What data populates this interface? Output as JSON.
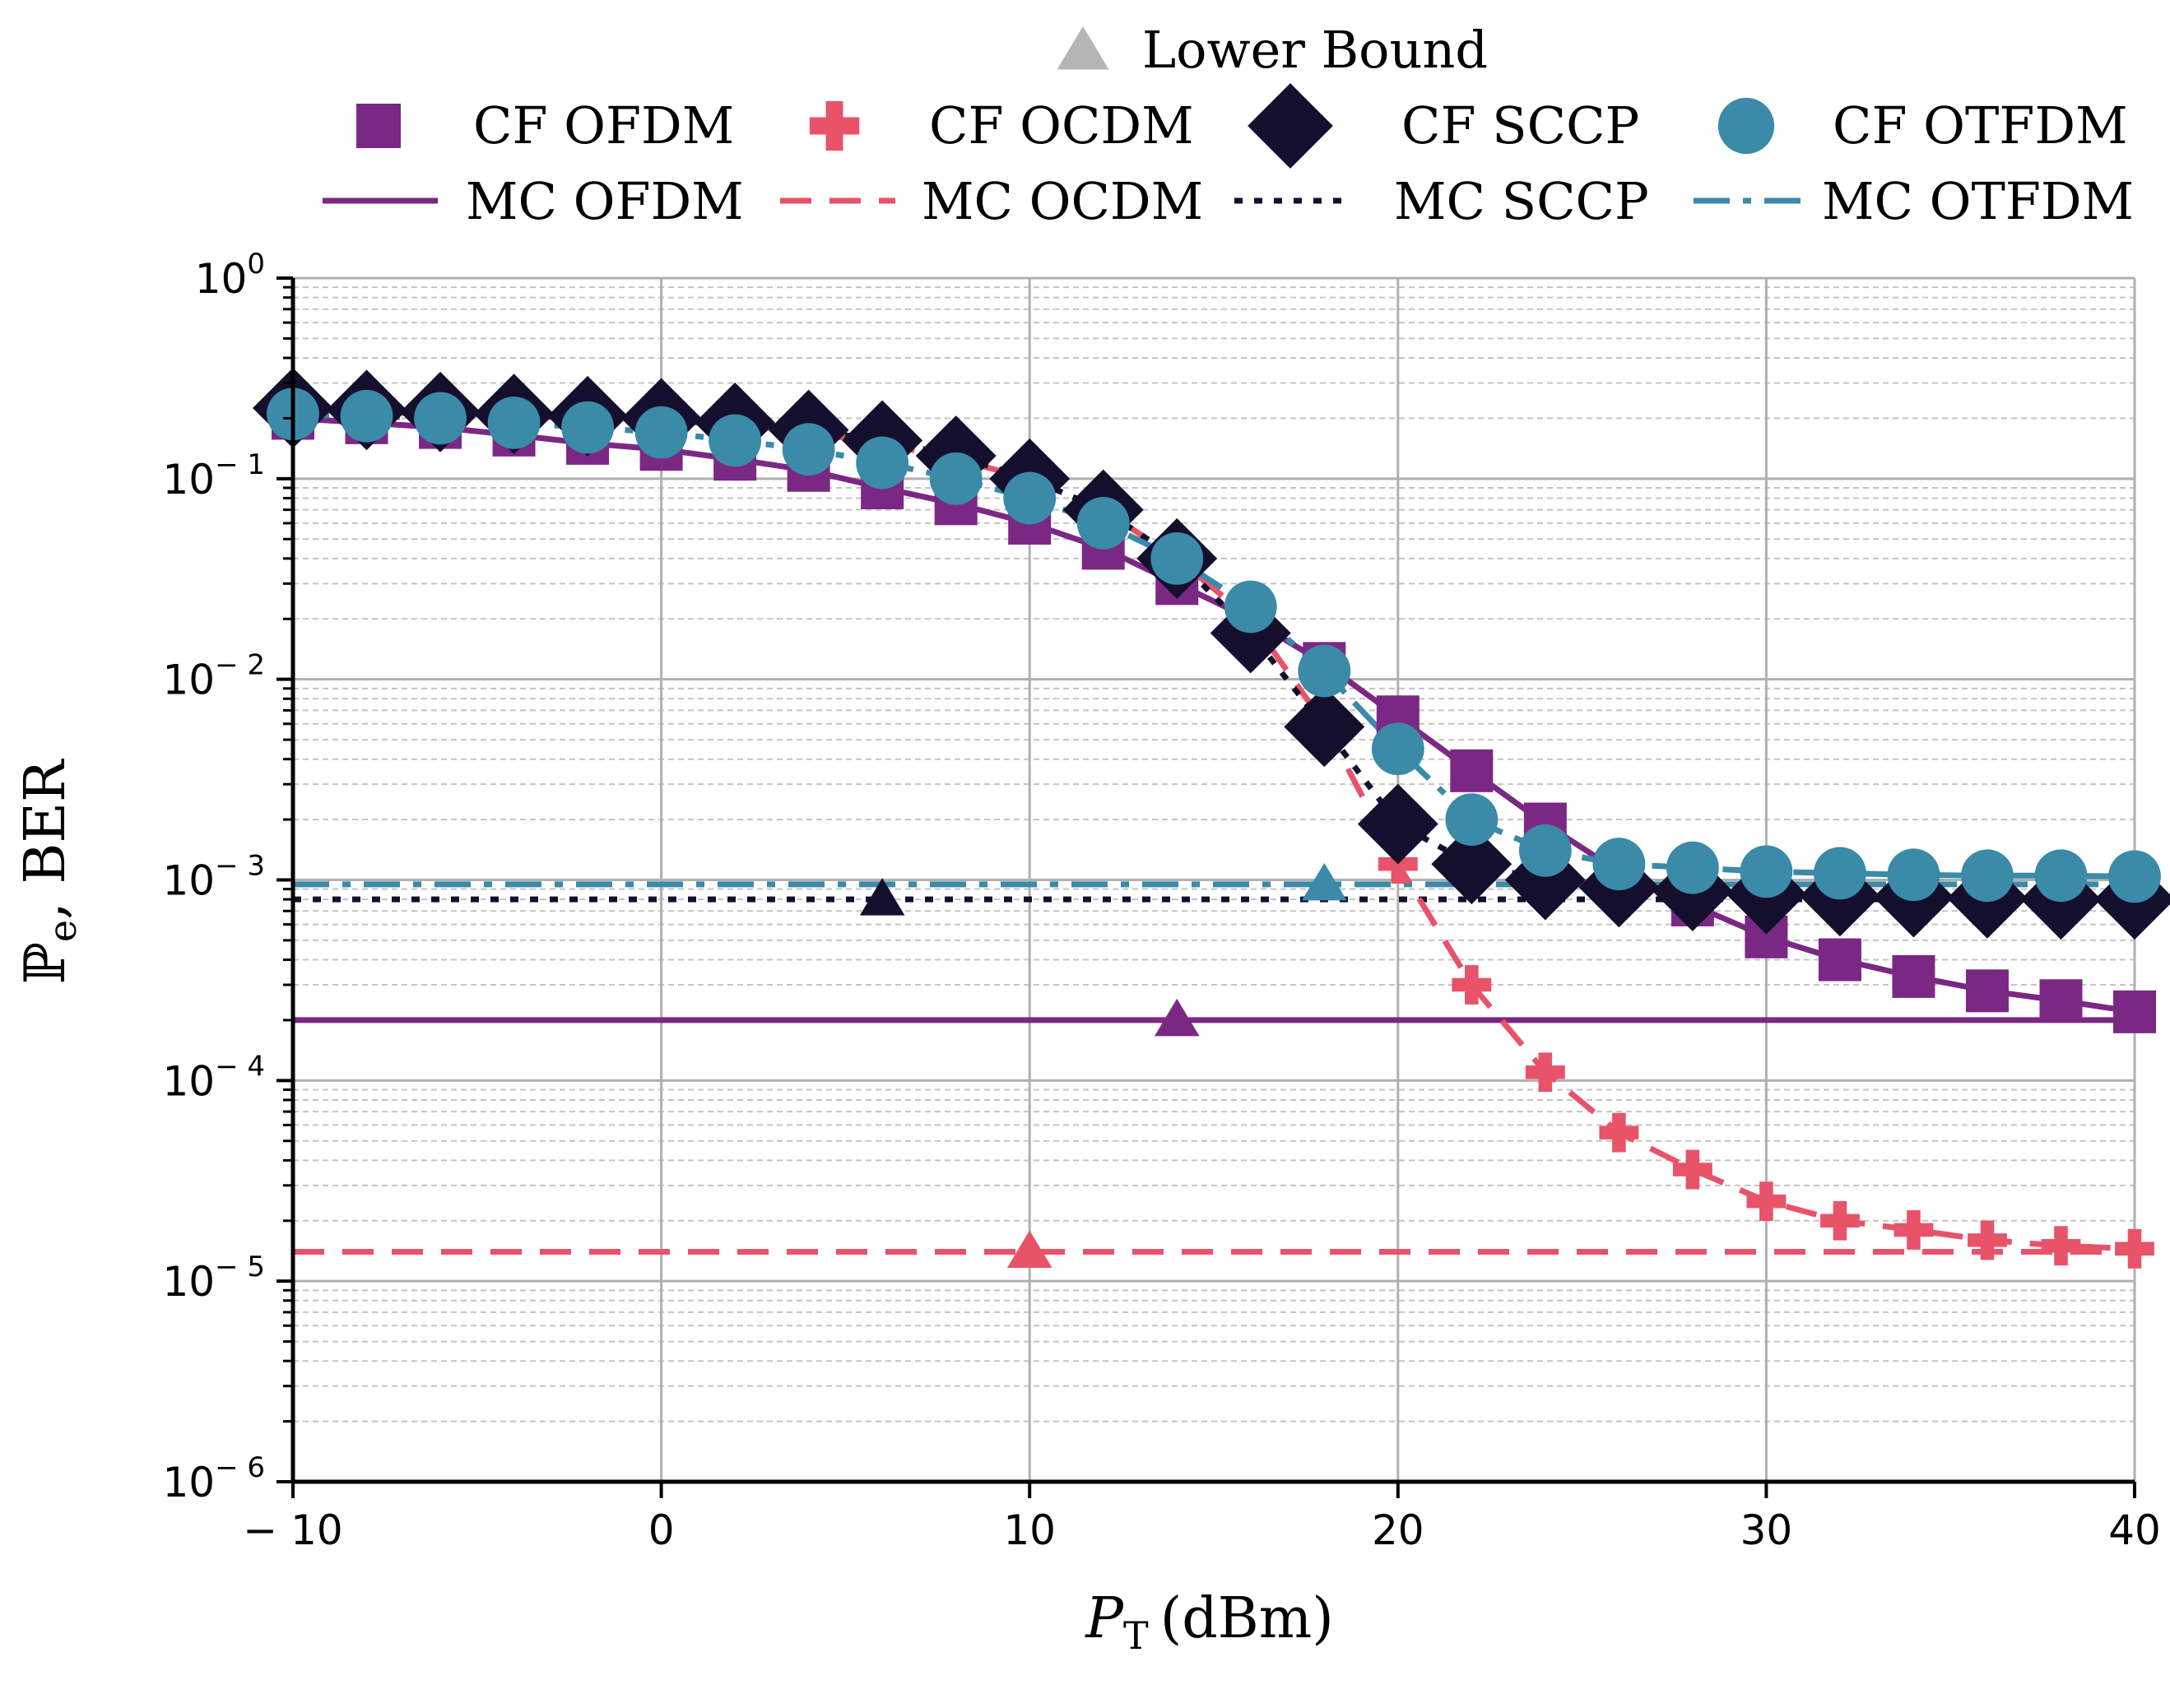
{
  "chart_data": {
    "type": "line",
    "xlabel": "P",
    "xlabel_sub": "T",
    "xlabel_unit": "(dBm)",
    "ylabel": "ℙ",
    "ylabel_sub": "e",
    "ylabel_rest": ", BER",
    "xlim": [
      -10,
      40
    ],
    "ylim": [
      1e-06,
      1
    ],
    "yscale": "log",
    "grid": true,
    "xticks": [
      -10,
      0,
      10,
      20,
      30,
      40
    ],
    "xtick_labels": [
      "− 10",
      "0",
      "10",
      "20",
      "30",
      "40"
    ],
    "yticks": [
      {
        "value": 1,
        "base": "10",
        "exp": "0"
      },
      {
        "value": 0.1,
        "base": "10",
        "exp": "− 1"
      },
      {
        "value": 0.01,
        "base": "10",
        "exp": "− 2"
      },
      {
        "value": 0.001,
        "base": "10",
        "exp": "− 3"
      },
      {
        "value": 0.0001,
        "base": "10",
        "exp": "− 4"
      },
      {
        "value": 1e-05,
        "base": "10",
        "exp": "− 5"
      },
      {
        "value": 1e-06,
        "base": "10",
        "exp": "− 6"
      }
    ],
    "legend_placement": "top",
    "x": [
      -10,
      -8,
      -6,
      -4,
      -2,
      0,
      2,
      4,
      6,
      8,
      10,
      12,
      14,
      16,
      18,
      20,
      22,
      24,
      26,
      28,
      30,
      32,
      34,
      36,
      38,
      40
    ],
    "series": [
      {
        "name": "CF OFDM",
        "kind": "cf",
        "marker": "square",
        "line": "solid",
        "color": "#7b2884",
        "values": [
          0.2,
          0.19,
          0.18,
          0.165,
          0.15,
          0.14,
          0.125,
          0.11,
          0.09,
          0.075,
          0.06,
          0.045,
          0.03,
          0.02,
          0.012,
          0.0065,
          0.0035,
          0.0019,
          0.0011,
          0.00075,
          0.00052,
          0.0004,
          0.00033,
          0.00028,
          0.00025,
          0.00022
        ]
      },
      {
        "name": "CF OCDM",
        "kind": "cf",
        "marker": "plus",
        "line": "dashed",
        "color": "#e8536a",
        "values": [
          0.22,
          0.215,
          0.21,
          0.205,
          0.2,
          0.195,
          0.185,
          0.17,
          0.15,
          0.125,
          0.1,
          0.07,
          0.04,
          0.02,
          0.006,
          0.0012,
          0.0003,
          0.00011,
          5.5e-05,
          3.6e-05,
          2.5e-05,
          2e-05,
          1.8e-05,
          1.6e-05,
          1.5e-05,
          1.45e-05
        ]
      },
      {
        "name": "CF SCCP",
        "kind": "cf",
        "marker": "diamond",
        "line": "dotted",
        "color": "#140f2d",
        "values": [
          0.225,
          0.22,
          0.215,
          0.21,
          0.205,
          0.2,
          0.19,
          0.175,
          0.155,
          0.13,
          0.1,
          0.07,
          0.04,
          0.017,
          0.0058,
          0.0019,
          0.0012,
          0.001,
          0.00092,
          0.00088,
          0.00085,
          0.00083,
          0.00082,
          0.00081,
          0.0008,
          0.0008
        ]
      },
      {
        "name": "CF OTFDM",
        "kind": "cf",
        "marker": "circle",
        "line": "dashdot",
        "color": "#3a8aa8",
        "values": [
          0.21,
          0.205,
          0.2,
          0.19,
          0.18,
          0.17,
          0.155,
          0.14,
          0.12,
          0.1,
          0.08,
          0.06,
          0.04,
          0.023,
          0.011,
          0.0045,
          0.002,
          0.0014,
          0.0012,
          0.00115,
          0.0011,
          0.00108,
          0.00106,
          0.00105,
          0.00105,
          0.00104
        ]
      },
      {
        "name": "MC OFDM",
        "kind": "mc",
        "line": "solid",
        "color": "#7b2884",
        "level": 0.0002
      },
      {
        "name": "MC OCDM",
        "kind": "mc",
        "line": "dashed",
        "color": "#e8536a",
        "level": 1.4e-05
      },
      {
        "name": "MC SCCP",
        "kind": "mc",
        "line": "dotted",
        "color": "#140f2d",
        "level": 0.0008
      },
      {
        "name": "MC OTFDM",
        "kind": "mc",
        "line": "dashdot",
        "color": "#3a8aa8",
        "level": 0.00095
      }
    ],
    "lower_bound": {
      "name": "Lower Bound",
      "legend_color": "#b5b5b5",
      "points": [
        {
          "x": 14,
          "y": 0.0002,
          "color": "#7b2884"
        },
        {
          "x": 10,
          "y": 1.4e-05,
          "color": "#e8536a"
        },
        {
          "x": 6,
          "y": 0.0008,
          "color": "#140f2d"
        },
        {
          "x": 18,
          "y": 0.00095,
          "color": "#3a8aa8"
        }
      ]
    }
  }
}
